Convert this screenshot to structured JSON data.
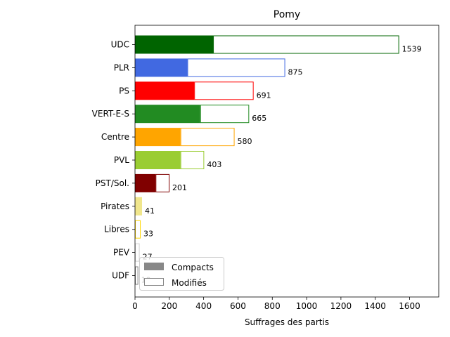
{
  "chart_data": {
    "type": "bar",
    "orientation": "horizontal",
    "title": "Pomy",
    "xlabel": "Suffrages des partis",
    "ylabel": "",
    "xlim": [
      0,
      1770
    ],
    "x_ticks": [
      0,
      200,
      400,
      600,
      800,
      1000,
      1200,
      1400,
      1600
    ],
    "grid": false,
    "legend_position": "lower-left",
    "categories": [
      "UDC",
      "PLR",
      "PS",
      "VERT-E-S",
      "Centre",
      "PVL",
      "PST/Sol.",
      "Pirates",
      "Libres",
      "PEV",
      "UDF"
    ],
    "colors": [
      "#006400",
      "#4169e1",
      "#ff0000",
      "#228b22",
      "#ffa500",
      "#9acd32",
      "#800000",
      "#f0e68c",
      "#ffd700",
      "#d3d3d3",
      "#808080"
    ],
    "series": [
      {
        "name": "Compacts",
        "values": [
          455,
          305,
          345,
          380,
          265,
          265,
          120,
          41,
          0,
          0,
          0
        ]
      },
      {
        "name": "Modifiés",
        "values": [
          1084,
          570,
          346,
          285,
          315,
          138,
          81,
          0,
          33,
          27,
          19
        ]
      }
    ],
    "totals": [
      1539,
      875,
      691,
      665,
      580,
      403,
      201,
      41,
      33,
      27,
      19
    ],
    "legend_colors": {
      "Compacts": "#888888",
      "Modifiés": "#888888"
    }
  }
}
